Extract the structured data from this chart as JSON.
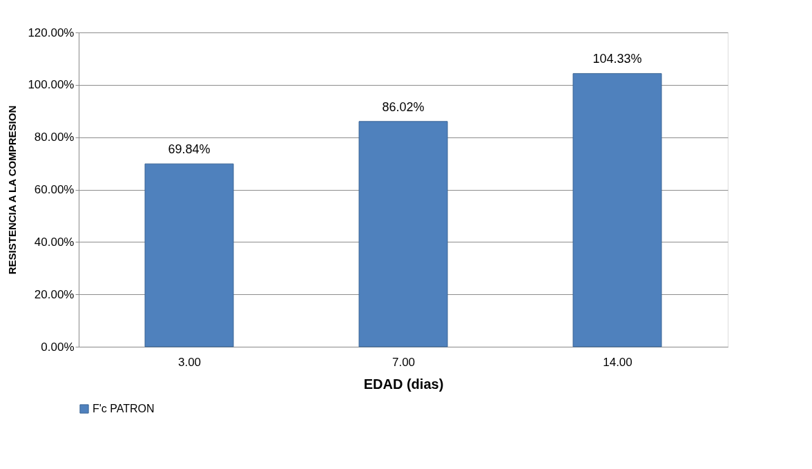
{
  "chart_data": {
    "type": "bar",
    "xlabel": "EDAD (dias)",
    "ylabel": "RESISTENCIA A LA COMPRESION",
    "categories": [
      "3.00",
      "7.00",
      "14.00"
    ],
    "series": [
      {
        "name": "F'c PATRON",
        "color": "#4f81bd",
        "values": [
          69.84,
          86.02,
          104.33
        ],
        "value_labels": [
          "69.84%",
          "86.02%",
          "104.33%"
        ]
      }
    ],
    "ylim": [
      0,
      120
    ],
    "yticks": [
      {
        "value": 0,
        "label": "0.00%"
      },
      {
        "value": 20,
        "label": "20.00%"
      },
      {
        "value": 40,
        "label": "40.00%"
      },
      {
        "value": 60,
        "label": "60.00%"
      },
      {
        "value": 80,
        "label": "80.00%"
      },
      {
        "value": 100,
        "label": "100.00%"
      },
      {
        "value": 120,
        "label": "120.00%"
      }
    ],
    "grid": "y",
    "legend": "bottom"
  }
}
